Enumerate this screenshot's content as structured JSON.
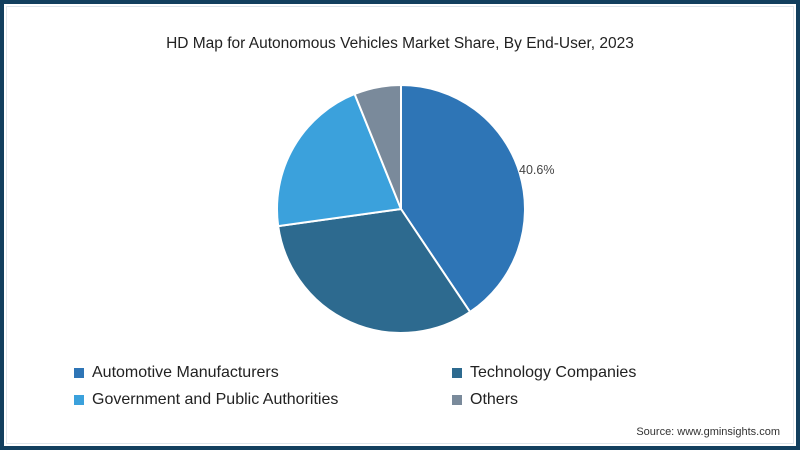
{
  "chart_data": {
    "type": "pie",
    "title": "HD Map for Autonomous Vehicles Market Share, By End-User, 2023",
    "categories": [
      "Automotive Manufacturers",
      "Technology Companies",
      "Government and Public Authorities",
      "Others"
    ],
    "values": [
      40.6,
      32.2,
      21.1,
      6.1
    ],
    "colors": [
      "#2e75b6",
      "#2d6a8f",
      "#3ba1dc",
      "#7a8a9b"
    ],
    "data_labels": [
      {
        "category": "Automotive Manufacturers",
        "text": "40.6%"
      }
    ],
    "legend_position": "bottom",
    "start_angle": "12 o'clock, clockwise"
  },
  "title": "HD Map for Autonomous Vehicles Market Share, By End-User, 2023",
  "label_automotive": "40.6%",
  "legend": [
    {
      "label": "Automotive Manufacturers",
      "color": "#2e75b6"
    },
    {
      "label": "Technology Companies",
      "color": "#2d6a8f"
    },
    {
      "label": "Government and Public Authorities",
      "color": "#3ba1dc"
    },
    {
      "label": "Others",
      "color": "#7a8a9b"
    }
  ],
  "source": "Source: www.gminsights.com",
  "frame_color": "#123f5e"
}
